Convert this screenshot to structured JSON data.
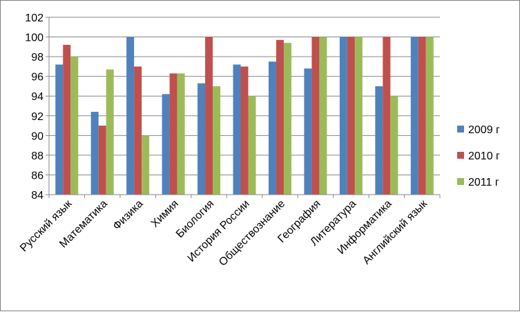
{
  "chart_data": {
    "type": "bar",
    "title": "",
    "xlabel": "",
    "ylabel": "",
    "ylim": [
      84,
      102
    ],
    "yticks": [
      84,
      86,
      88,
      90,
      92,
      94,
      96,
      98,
      100,
      102
    ],
    "grid": true,
    "legend_position": "right",
    "categories": [
      "Русский язык",
      "Математика",
      "Физика",
      "Химия",
      "Биология",
      "История России",
      "Обществознание",
      "География",
      "Литература",
      "Информатика",
      "Английский язык"
    ],
    "series": [
      {
        "name": "2009 г",
        "color": "#4f81bd",
        "values": [
          97.2,
          92.4,
          100,
          94.2,
          95.3,
          97.2,
          97.5,
          96.8,
          100,
          95,
          100
        ]
      },
      {
        "name": "2010 г",
        "color": "#c0504d",
        "values": [
          99.2,
          91,
          97,
          96.3,
          100,
          97,
          99.7,
          100,
          100,
          100,
          100
        ]
      },
      {
        "name": "2011 г",
        "color": "#9bbb59",
        "values": [
          98,
          96.7,
          90,
          96.3,
          95,
          94,
          99.4,
          100,
          100,
          94,
          100
        ]
      }
    ]
  }
}
